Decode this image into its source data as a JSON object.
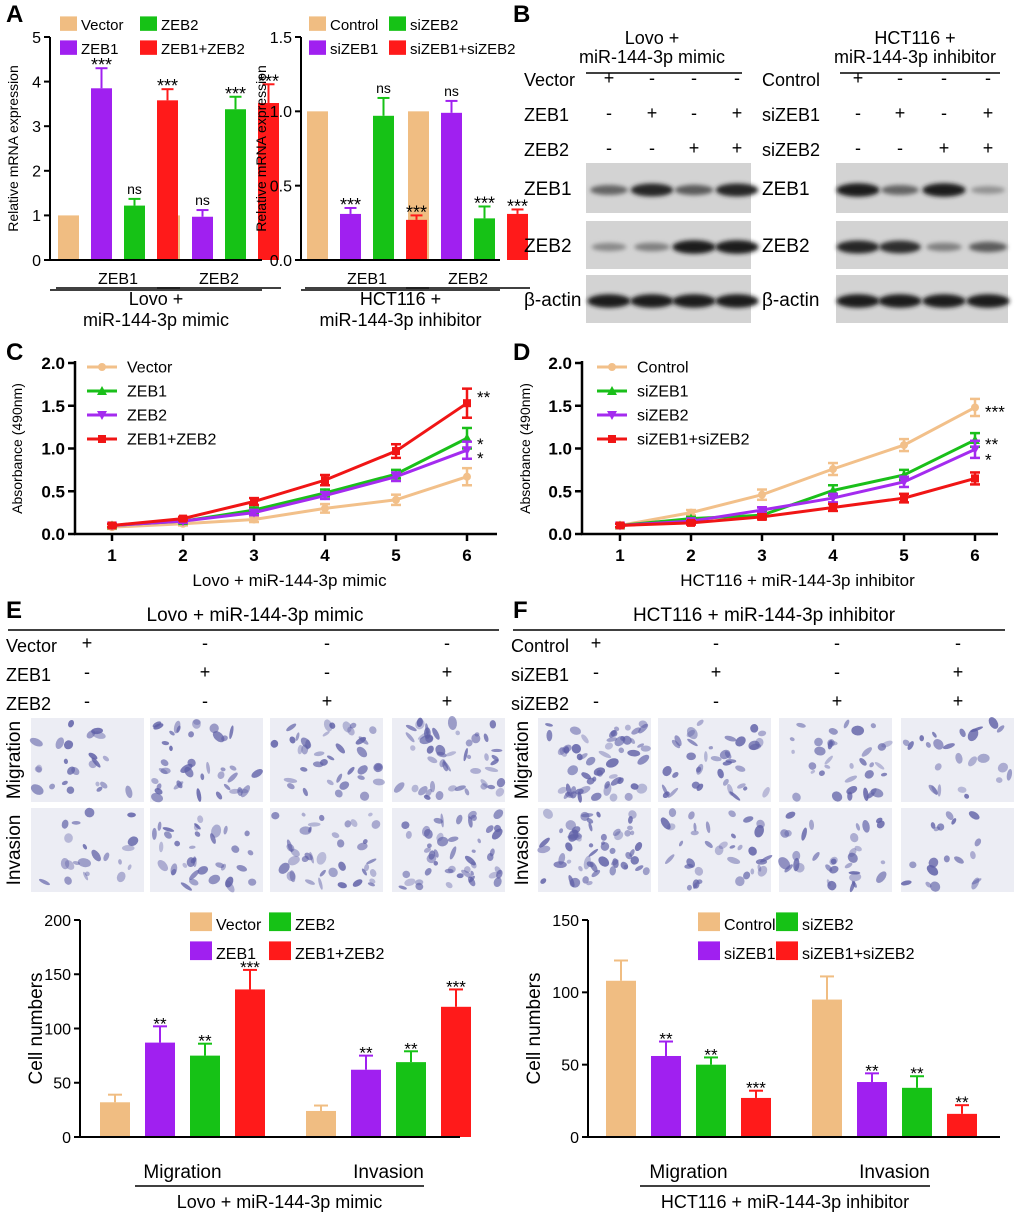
{
  "colors": {
    "tan": "#F0BD82",
    "green": "#16C216",
    "purple": "#A020F0",
    "red": "#FF1A1A",
    "line_tan": "#F2C08A",
    "line_green": "#1ABF1A",
    "line_purple": "#A42BEF",
    "line_red": "#F01515",
    "text": "#000000",
    "micro_bg": "#ECEDF4",
    "cell": "#5E5FA6"
  },
  "panel_labels": {
    "A": "A",
    "B": "B",
    "C": "C",
    "D": "D",
    "E": "E",
    "F": "F"
  },
  "panel_b": {
    "left": {
      "title1": "Lovo +",
      "title2": "miR-144-3p mimic",
      "rows": [
        {
          "label": "Vector",
          "signs": [
            "+",
            "-",
            "-",
            "-"
          ]
        },
        {
          "label": "ZEB1",
          "signs": [
            "-",
            "+",
            "-",
            "+"
          ]
        },
        {
          "label": "ZEB2",
          "signs": [
            "-",
            "-",
            "+",
            "+"
          ]
        }
      ],
      "blots": [
        {
          "label": "ZEB1",
          "intensity": [
            0.55,
            0.9,
            0.6,
            0.9
          ]
        },
        {
          "label": "ZEB2",
          "intensity": [
            0.35,
            0.4,
            0.95,
            0.95
          ]
        },
        {
          "label": "β-actin",
          "intensity": [
            0.95,
            0.95,
            0.95,
            0.95
          ]
        }
      ]
    },
    "right": {
      "title1": "HCT116 +",
      "title2": "miR-144-3p inhibitor",
      "rows": [
        {
          "label": "Control",
          "signs": [
            "+",
            "-",
            "-",
            "-"
          ]
        },
        {
          "label": "siZEB1",
          "signs": [
            "-",
            "+",
            "-",
            "+"
          ]
        },
        {
          "label": "siZEB2",
          "signs": [
            "-",
            "-",
            "+",
            "+"
          ]
        }
      ],
      "blots": [
        {
          "label": "ZEB1",
          "intensity": [
            0.95,
            0.55,
            0.95,
            0.3
          ]
        },
        {
          "label": "ZEB2",
          "intensity": [
            0.9,
            0.85,
            0.4,
            0.6
          ]
        },
        {
          "label": "β-actin",
          "intensity": [
            0.95,
            0.95,
            0.95,
            0.95
          ]
        }
      ]
    }
  },
  "panel_e_micro": {
    "title": "Lovo + miR-144-3p mimic",
    "rows": [
      {
        "label": "Vector",
        "signs": [
          "+",
          "-",
          "-",
          "-"
        ]
      },
      {
        "label": "ZEB1",
        "signs": [
          "-",
          "+",
          "-",
          "+"
        ]
      },
      {
        "label": "ZEB2",
        "signs": [
          "-",
          "-",
          "+",
          "+"
        ]
      }
    ],
    "image_rows": [
      "Migration",
      "Invasion"
    ],
    "density": [
      [
        0.25,
        0.55,
        0.5,
        0.7
      ],
      [
        0.2,
        0.45,
        0.5,
        0.7
      ]
    ]
  },
  "panel_f_micro": {
    "title": "HCT116 + miR-144-3p inhibitor",
    "rows": [
      {
        "label": "Control",
        "signs": [
          "+",
          "-",
          "-",
          "-"
        ]
      },
      {
        "label": "siZEB1",
        "signs": [
          "-",
          "+",
          "-",
          "+"
        ]
      },
      {
        "label": "siZEB2",
        "signs": [
          "-",
          "-",
          "+",
          "+"
        ]
      }
    ],
    "image_rows": [
      "Migration",
      "Invasion"
    ],
    "density": [
      [
        0.85,
        0.5,
        0.45,
        0.25
      ],
      [
        0.8,
        0.45,
        0.4,
        0.15
      ]
    ]
  },
  "chart_data": [
    {
      "id": "A1",
      "type": "bar",
      "ylabel": "Relative mRNA expression",
      "ylim": [
        0,
        5
      ],
      "yticks": [
        "0",
        "1",
        "2",
        "3",
        "4",
        "5"
      ],
      "groups": [
        "ZEB1",
        "ZEB2"
      ],
      "xlabel_lines": [
        "Lovo +",
        "miR-144-3p mimic"
      ],
      "legend": [
        "Vector",
        "ZEB2",
        "ZEB1",
        "ZEB1+ZEB2"
      ],
      "series": [
        {
          "name": "Vector",
          "color": "tan",
          "values": [
            1.0,
            1.0
          ],
          "errors": [
            0,
            0
          ],
          "sig": [
            "",
            ""
          ]
        },
        {
          "name": "ZEB1",
          "color": "purple",
          "values": [
            3.85,
            0.97
          ],
          "errors": [
            0.45,
            0.15
          ],
          "sig": [
            "***",
            "ns"
          ]
        },
        {
          "name": "ZEB2",
          "color": "green",
          "values": [
            1.22,
            3.38
          ],
          "errors": [
            0.15,
            0.28
          ],
          "sig": [
            "ns",
            "***"
          ]
        },
        {
          "name": "ZEB1+ZEB2",
          "color": "red",
          "values": [
            3.58,
            3.52
          ],
          "errors": [
            0.25,
            0.42
          ],
          "sig": [
            "***",
            "***"
          ]
        }
      ]
    },
    {
      "id": "A2",
      "type": "bar",
      "ylabel": "Relative mRNA expression",
      "ylim": [
        0,
        1.5
      ],
      "yticks": [
        "0.0",
        "0.5",
        "1.0",
        "1.5"
      ],
      "groups": [
        "ZEB1",
        "ZEB2"
      ],
      "xlabel_lines": [
        "HCT116 +",
        "miR-144-3p inhibitor"
      ],
      "legend": [
        "Control",
        "siZEB2",
        "siZEB1",
        "siZEB1+siZEB2"
      ],
      "series": [
        {
          "name": "Control",
          "color": "tan",
          "values": [
            1.0,
            1.0
          ],
          "errors": [
            0,
            0
          ],
          "sig": [
            "",
            ""
          ]
        },
        {
          "name": "siZEB1",
          "color": "purple",
          "values": [
            0.31,
            0.99
          ],
          "errors": [
            0.04,
            0.08
          ],
          "sig": [
            "***",
            "ns"
          ]
        },
        {
          "name": "siZEB2",
          "color": "green",
          "values": [
            0.97,
            0.28
          ],
          "errors": [
            0.12,
            0.08
          ],
          "sig": [
            "ns",
            "***"
          ]
        },
        {
          "name": "siZEB1+siZEB2",
          "color": "red",
          "values": [
            0.27,
            0.31
          ],
          "errors": [
            0.03,
            0.03
          ],
          "sig": [
            "***",
            "***"
          ]
        }
      ]
    },
    {
      "id": "C",
      "type": "line",
      "ylabel": "Absorbance (490nm)",
      "ylim": [
        0,
        2.0
      ],
      "yticks": [
        "0.0",
        "0.5",
        "1.0",
        "1.5",
        "2.0"
      ],
      "x": [
        1,
        2,
        3,
        4,
        5,
        6
      ],
      "xlabel": "Lovo + miR-144-3p mimic",
      "series": [
        {
          "name": "Vector",
          "color": "line_tan",
          "marker": "circle",
          "values": [
            0.08,
            0.12,
            0.17,
            0.3,
            0.4,
            0.67
          ],
          "errors": [
            0.02,
            0.02,
            0.03,
            0.05,
            0.06,
            0.1
          ],
          "sig": ""
        },
        {
          "name": "ZEB1",
          "color": "line_green",
          "marker": "triangle-up",
          "values": [
            0.1,
            0.15,
            0.28,
            0.48,
            0.7,
            1.12
          ],
          "errors": [
            0.02,
            0.02,
            0.03,
            0.04,
            0.05,
            0.12
          ],
          "sig": "*"
        },
        {
          "name": "ZEB2",
          "color": "line_purple",
          "marker": "triangle-down",
          "values": [
            0.1,
            0.15,
            0.25,
            0.45,
            0.67,
            0.98
          ],
          "errors": [
            0.02,
            0.02,
            0.03,
            0.04,
            0.05,
            0.1
          ],
          "sig": "*"
        },
        {
          "name": "ZEB1+ZEB2",
          "color": "line_red",
          "marker": "square",
          "values": [
            0.1,
            0.18,
            0.38,
            0.63,
            0.97,
            1.53
          ],
          "errors": [
            0.02,
            0.02,
            0.04,
            0.06,
            0.08,
            0.17
          ],
          "sig": "**"
        }
      ]
    },
    {
      "id": "D",
      "type": "line",
      "ylabel": "Absorbance (490nm)",
      "ylim": [
        0,
        2.0
      ],
      "yticks": [
        "0.0",
        "0.5",
        "1.0",
        "1.5",
        "2.0"
      ],
      "x": [
        1,
        2,
        3,
        4,
        5,
        6
      ],
      "xlabel": "HCT116 + miR-144-3p inhibitor",
      "series": [
        {
          "name": "Control",
          "color": "line_tan",
          "marker": "circle",
          "values": [
            0.1,
            0.25,
            0.46,
            0.76,
            1.04,
            1.48
          ],
          "errors": [
            0.02,
            0.03,
            0.06,
            0.07,
            0.07,
            0.1
          ],
          "sig": "***"
        },
        {
          "name": "siZEB1",
          "color": "line_green",
          "marker": "triangle-up",
          "values": [
            0.1,
            0.18,
            0.22,
            0.51,
            0.69,
            1.1
          ],
          "errors": [
            0.02,
            0.02,
            0.04,
            0.06,
            0.06,
            0.08
          ],
          "sig": "**"
        },
        {
          "name": "siZEB2",
          "color": "line_purple",
          "marker": "triangle-down",
          "values": [
            0.1,
            0.15,
            0.28,
            0.42,
            0.61,
            0.99
          ],
          "errors": [
            0.02,
            0.02,
            0.03,
            0.05,
            0.06,
            0.1
          ],
          "sig": "*"
        },
        {
          "name": "siZEB1+siZEB2",
          "color": "line_red",
          "marker": "square",
          "values": [
            0.1,
            0.13,
            0.2,
            0.31,
            0.42,
            0.65
          ],
          "errors": [
            0.02,
            0.02,
            0.03,
            0.04,
            0.05,
            0.07
          ],
          "sig": ""
        }
      ]
    },
    {
      "id": "E",
      "type": "bar",
      "ylabel": "Cell numbers",
      "ylim": [
        0,
        200
      ],
      "yticks": [
        "0",
        "50",
        "100",
        "150",
        "200"
      ],
      "groups": [
        "Migration",
        "Invasion"
      ],
      "xlabel_lines": [
        "Lovo + miR-144-3p mimic"
      ],
      "legend": [
        "Vector",
        "ZEB2",
        "ZEB1",
        "ZEB1+ZEB2"
      ],
      "series": [
        {
          "name": "Vector",
          "color": "tan",
          "values": [
            32,
            24
          ],
          "errors": [
            7,
            5
          ],
          "sig": [
            "",
            ""
          ]
        },
        {
          "name": "ZEB1",
          "color": "purple",
          "values": [
            87,
            62
          ],
          "errors": [
            15,
            13
          ],
          "sig": [
            "**",
            "**"
          ]
        },
        {
          "name": "ZEB2",
          "color": "green",
          "values": [
            75,
            69
          ],
          "errors": [
            11,
            10
          ],
          "sig": [
            "**",
            "**"
          ]
        },
        {
          "name": "ZEB1+ZEB2",
          "color": "red",
          "values": [
            136,
            120
          ],
          "errors": [
            18,
            16
          ],
          "sig": [
            "***",
            "***"
          ]
        }
      ]
    },
    {
      "id": "F",
      "type": "bar",
      "ylabel": "Cell numbers",
      "ylim": [
        0,
        150
      ],
      "yticks": [
        "0",
        "50",
        "100",
        "150"
      ],
      "groups": [
        "Migration",
        "Invasion"
      ],
      "xlabel_lines": [
        "HCT116 + miR-144-3p inhibitor"
      ],
      "legend": [
        "Control",
        "siZEB2",
        "siZEB1",
        "siZEB1+siZEB2"
      ],
      "series": [
        {
          "name": "Control",
          "color": "tan",
          "values": [
            108,
            95
          ],
          "errors": [
            14,
            16
          ],
          "sig": [
            "",
            ""
          ]
        },
        {
          "name": "siZEB1",
          "color": "purple",
          "values": [
            56,
            38
          ],
          "errors": [
            10,
            6
          ],
          "sig": [
            "**",
            "**"
          ]
        },
        {
          "name": "siZEB2",
          "color": "green",
          "values": [
            50,
            34
          ],
          "errors": [
            5,
            8
          ],
          "sig": [
            "**",
            "**"
          ]
        },
        {
          "name": "siZEB1+siZEB2",
          "color": "red",
          "values": [
            27,
            16
          ],
          "errors": [
            5,
            6
          ],
          "sig": [
            "***",
            "**"
          ]
        }
      ]
    }
  ]
}
